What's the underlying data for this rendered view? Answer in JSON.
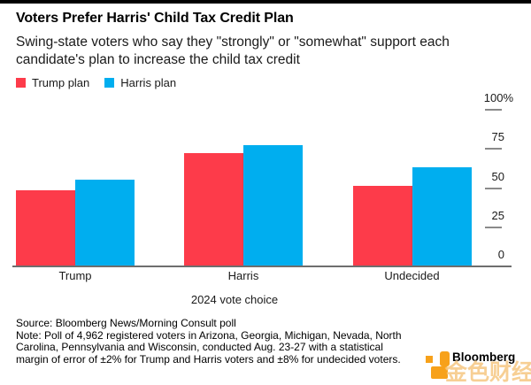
{
  "chart_data": {
    "type": "bar",
    "title": "Voters Prefer Harris' Child Tax Credit Plan",
    "subtitle_lines": [
      "Swing-state voters who say they \"strongly\" or \"somewhat\" support each",
      "candidate's plan to increase the child tax credit"
    ],
    "categories": [
      "Trump",
      "Harris",
      "Undecided"
    ],
    "series": [
      {
        "name": "Trump plan",
        "color": "#FD3B4A",
        "values": [
          48,
          72,
          51
        ]
      },
      {
        "name": "Harris plan",
        "color": "#00AEEF",
        "values": [
          55,
          77,
          63
        ]
      }
    ],
    "xlabel": "2024 vote choice",
    "ylabel": "",
    "ylim": [
      0,
      100
    ],
    "yticks": [
      0,
      25,
      50,
      75,
      100
    ],
    "ytick_top_label": "100%",
    "legend_position": "top-left",
    "axis_side": "right",
    "grid": false
  },
  "footer": {
    "source": "Source: Bloomberg News/Morning Consult poll",
    "note_lines": [
      "Note: Poll of 4,962 registered voters in Arizona, Georgia, Michigan, Nevada, North",
      "Carolina, Pennsylvania and Wisconsin, conducted Aug. 23-27 with a statistical",
      "margin of error of ±2% for Trump and Harris voters and ±8% for undecided voters."
    ]
  },
  "branding": {
    "logo_text": "Bloomberg",
    "watermark": "金色财经",
    "accent_color": "#F7A11A"
  }
}
